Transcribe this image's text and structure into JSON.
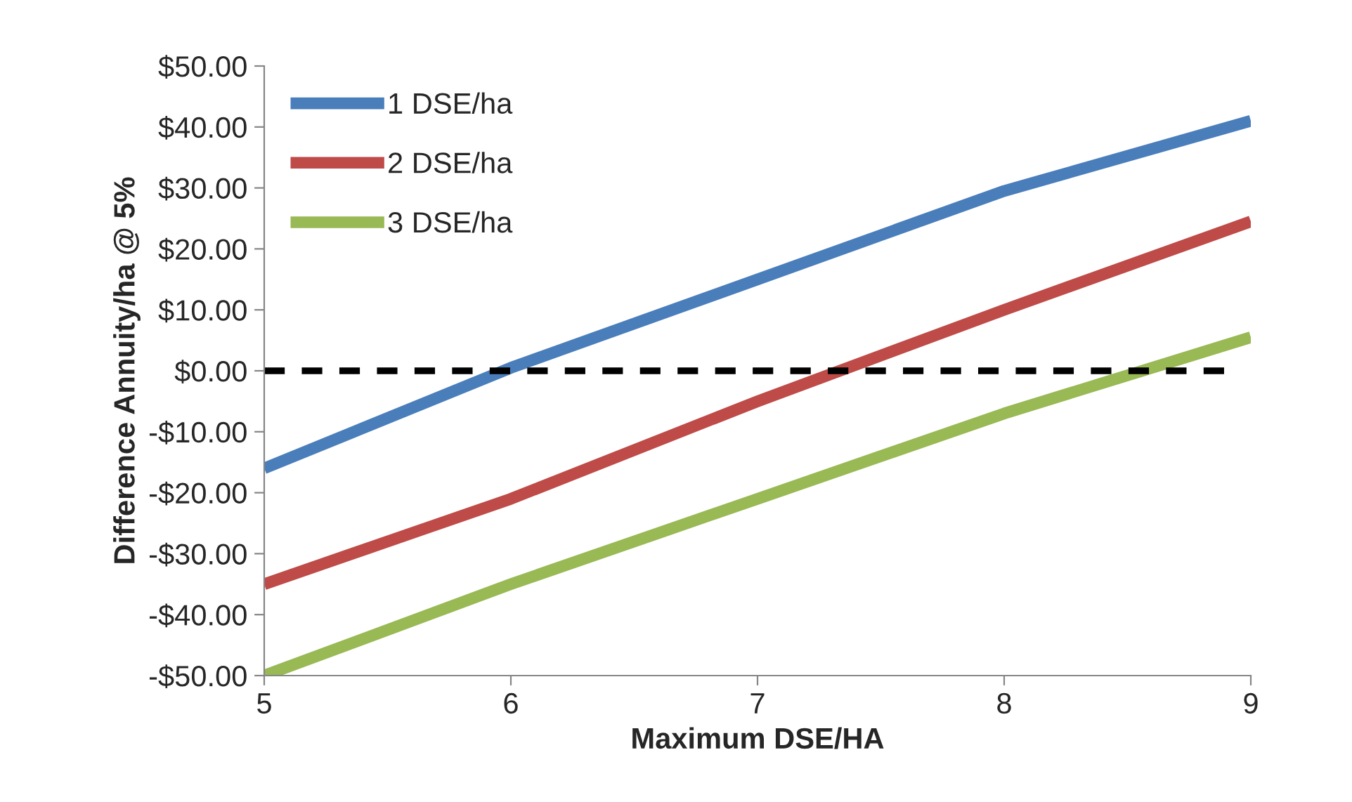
{
  "chart_data": {
    "type": "line",
    "xlabel": "Maximum DSE/HA",
    "ylabel": "Difference Annuity/ha @ 5%",
    "x": [
      5,
      6,
      7,
      8,
      9
    ],
    "series": [
      {
        "name": "1 DSE/ha",
        "color": "#4a7ebb",
        "values": [
          -16,
          0.5,
          15,
          29.5,
          41
        ]
      },
      {
        "name": "2 DSE/ha",
        "color": "#be4b48",
        "values": [
          -35,
          -21,
          -5,
          10,
          24.5
        ]
      },
      {
        "name": "3 DSE/ha",
        "color": "#98b954",
        "values": [
          -50,
          -35,
          -21,
          -7,
          5.5
        ]
      }
    ],
    "ref_lines": [
      {
        "axis": "y",
        "value": 0,
        "color": "#000000",
        "line_style": "dashed"
      }
    ],
    "xlim": [
      5,
      9
    ],
    "xticks": [
      5,
      6,
      7,
      8,
      9
    ],
    "ylim": [
      -50,
      50
    ],
    "yticks": [
      {
        "value": -50,
        "label": "-$50.00"
      },
      {
        "value": -40,
        "label": "-$40.00"
      },
      {
        "value": -30,
        "label": "-$30.00"
      },
      {
        "value": -20,
        "label": "-$20.00"
      },
      {
        "value": -10,
        "label": "-$10.00"
      },
      {
        "value": 0,
        "label": "$0.00"
      },
      {
        "value": 10,
        "label": "$10.00"
      },
      {
        "value": 20,
        "label": "$20.00"
      },
      {
        "value": 30,
        "label": "$30.00"
      },
      {
        "value": 40,
        "label": "$40.00"
      },
      {
        "value": 50,
        "label": "$50.00"
      }
    ],
    "grid": false,
    "legend": "top left",
    "marker": "none",
    "line_style": "solid"
  }
}
